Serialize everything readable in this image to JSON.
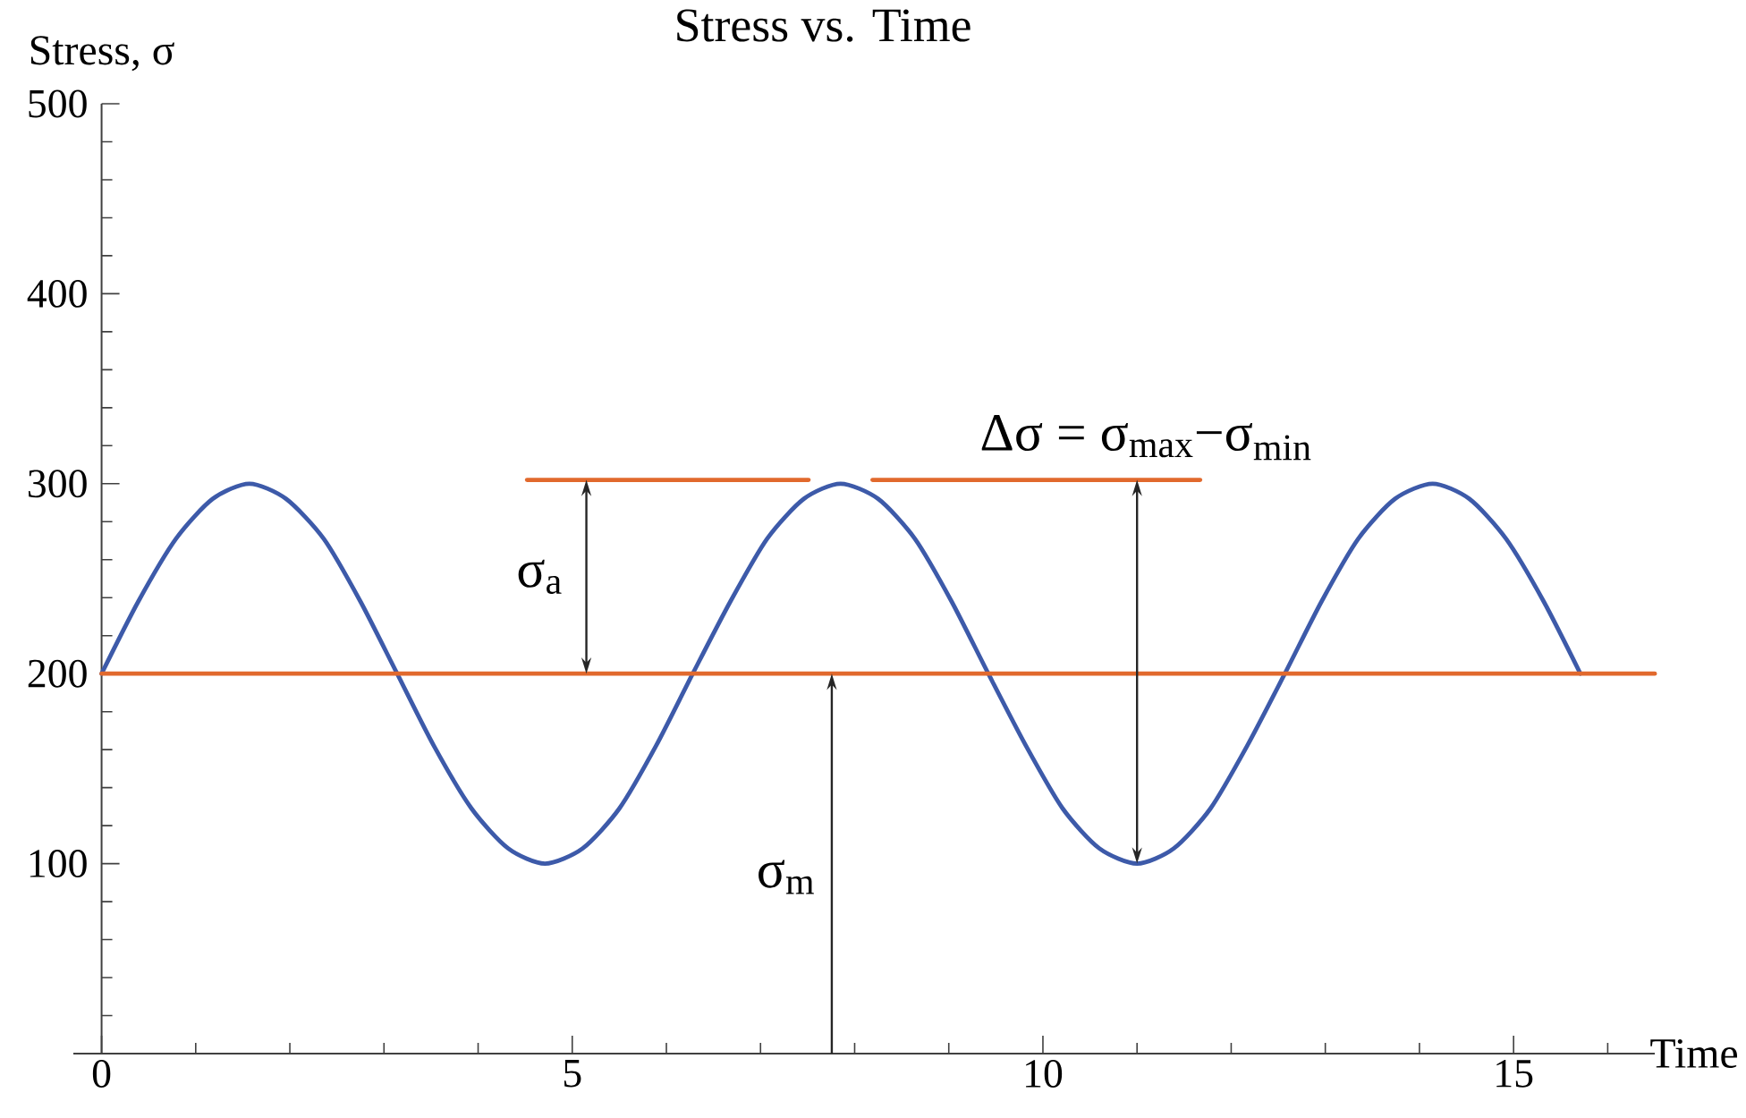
{
  "chart_data": {
    "type": "line",
    "title": "Stress vs. Time",
    "xlabel": "Time",
    "ylabel": "Stress, σ",
    "xlim": [
      -0.3,
      16.5
    ],
    "ylim": [
      0,
      500
    ],
    "xticks": [
      0,
      {
        "value": 1,
        "label": null
      },
      {
        "value": 2,
        "label": null
      },
      {
        "value": 3,
        "label": null
      },
      {
        "value": 4,
        "label": null
      },
      5,
      {
        "value": 6,
        "label": null
      },
      {
        "value": 7,
        "label": null
      },
      {
        "value": 8,
        "label": null
      },
      {
        "value": 9,
        "label": null
      },
      10,
      {
        "value": 11,
        "label": null
      },
      {
        "value": 12,
        "label": null
      },
      {
        "value": 13,
        "label": null
      },
      {
        "value": 14,
        "label": null
      },
      15,
      {
        "value": 16,
        "label": null
      }
    ],
    "yticks": [
      {
        "value": 20,
        "label": null
      },
      {
        "value": 40,
        "label": null
      },
      {
        "value": 60,
        "label": null
      },
      {
        "value": 80,
        "label": null
      },
      100,
      {
        "value": 120,
        "label": null
      },
      {
        "value": 140,
        "label": null
      },
      {
        "value": 160,
        "label": null
      },
      {
        "value": 180,
        "label": null
      },
      200,
      {
        "value": 220,
        "label": null
      },
      {
        "value": 240,
        "label": null
      },
      {
        "value": 260,
        "label": null
      },
      {
        "value": 280,
        "label": null
      },
      300,
      {
        "value": 320,
        "label": null
      },
      {
        "value": 340,
        "label": null
      },
      {
        "value": 360,
        "label": null
      },
      {
        "value": 380,
        "label": null
      },
      400,
      {
        "value": 420,
        "label": null
      },
      {
        "value": 440,
        "label": null
      },
      {
        "value": 460,
        "label": null
      },
      {
        "value": 480,
        "label": null
      },
      500
    ],
    "series": [
      {
        "color": "#3d5aa9",
        "x": [
          0,
          0.39,
          0.79,
          1.18,
          1.57,
          1.96,
          2.36,
          2.75,
          3.14,
          3.53,
          3.93,
          4.32,
          4.71,
          5.11,
          5.5,
          5.89,
          6.28,
          6.68,
          7.07,
          7.46,
          7.85,
          8.25,
          8.64,
          9.03,
          9.42,
          9.82,
          10.21,
          10.6,
          11.0,
          11.39,
          11.78,
          12.17,
          12.57,
          12.96,
          13.35,
          13.74,
          14.14,
          14.53,
          14.92,
          15.32,
          15.71
        ],
        "values": [
          200,
          238,
          271,
          292,
          300,
          292,
          271,
          238,
          200,
          162,
          129,
          108,
          100,
          108,
          129,
          162,
          200,
          238,
          271,
          292,
          300,
          292,
          271,
          238,
          200,
          162,
          129,
          108,
          100,
          108,
          129,
          162,
          200,
          238,
          271,
          292,
          300,
          292,
          271,
          238,
          200
        ]
      },
      {
        "color": "#e1692d",
        "x": [
          0,
          16.5
        ],
        "values": [
          200,
          200
        ]
      },
      {
        "color": "#e1692d",
        "x": [
          4.52,
          7.51
        ],
        "values": [
          302,
          302
        ]
      },
      {
        "color": "#e1692d",
        "x": [
          8.19,
          11.67
        ],
        "values": [
          302,
          302
        ]
      }
    ],
    "annotations": [
      {
        "text": "σ$_{a}$",
        "x": 5.15,
        "y": 302
      },
      "σ$_{m}$",
      {
        "text": "Δσ = σ$_{max}$−σ$_{min}$",
        "x": 11.0,
        "y": 302
      }
    ]
  }
}
